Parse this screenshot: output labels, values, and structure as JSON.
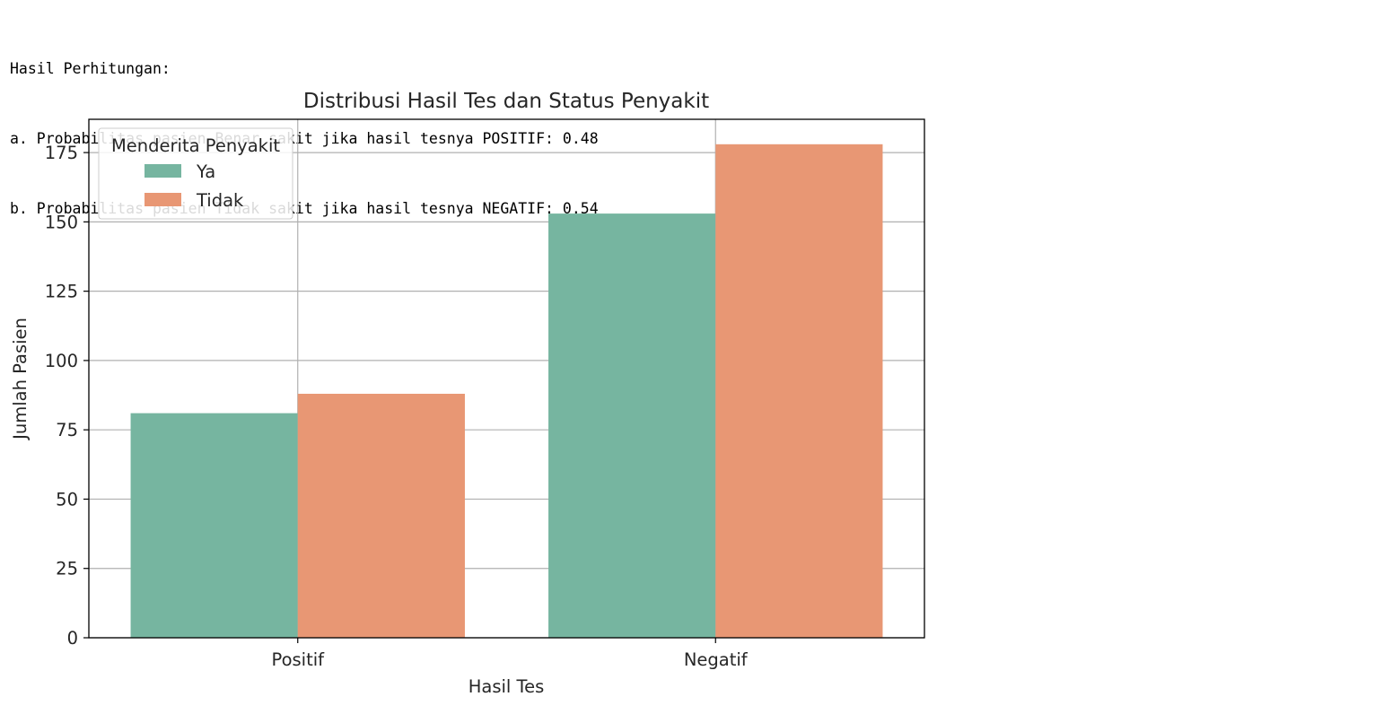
{
  "output": {
    "heading": "Hasil Perhitungan:",
    "line_a": "a. Probabilitas pasien Benar sakit jika hasil tesnya POSITIF: 0.48",
    "line_b": "b. Probabilitas pasien Tidak sakit jika hasil tesnya NEGATIF: 0.54"
  },
  "chart_data": {
    "type": "bar",
    "title": "Distribusi Hasil Tes dan Status Penyakit",
    "xlabel": "Hasil Tes",
    "ylabel": "Jumlah Pasien",
    "categories": [
      "Positif",
      "Negatif"
    ],
    "series": [
      {
        "name": "Ya",
        "values": [
          81,
          153
        ],
        "color": "#76b5a0"
      },
      {
        "name": "Tidak",
        "values": [
          88,
          178
        ],
        "color": "#e89774"
      }
    ],
    "ylim": [
      0,
      187
    ],
    "yticks": [
      0,
      25,
      50,
      75,
      100,
      125,
      150,
      175
    ],
    "grid": true,
    "legend": {
      "title": "Menderita Penyakit",
      "placement": "top-left"
    }
  }
}
